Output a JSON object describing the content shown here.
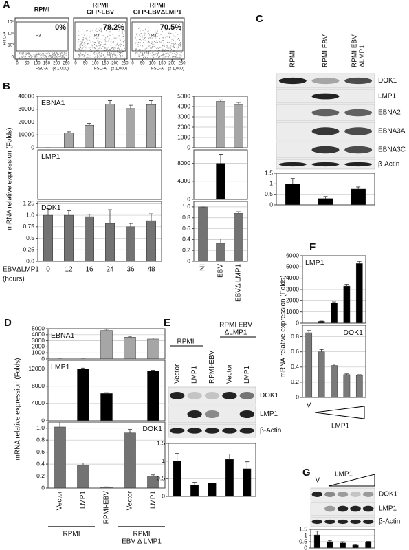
{
  "panel_labels": [
    "A",
    "B",
    "C",
    "D",
    "E",
    "F",
    "G"
  ],
  "flow": {
    "plots": [
      {
        "title": [
          "RPMI"
        ],
        "percent": "0%"
      },
      {
        "title": [
          "RPMI",
          "GFP-EBV"
        ],
        "percent": "78.2%"
      },
      {
        "title": [
          "RPMI",
          "GFP-EBVΔLMP1"
        ],
        "percent": "70.5%"
      }
    ],
    "gate": "P3",
    "x_label": "FSC-A",
    "x_unit": "(x 1,000)",
    "y_label": "FITC-A",
    "xlim": [
      0,
      262
    ],
    "xticks": [
      0,
      50,
      100,
      150,
      200,
      250
    ],
    "yticks": [
      "10⁵",
      "10⁴",
      "10³",
      "0"
    ]
  },
  "blots": {
    "C": {
      "lanes": [
        [
          "RPMI"
        ],
        [
          "RPMI EBV"
        ],
        [
          "RPMI EBV",
          "ΔLMP1"
        ]
      ],
      "rows": [
        "DOK1",
        "LMP1",
        "EBNA2",
        "EBNA3A",
        "EBNA3C",
        "β-Actin"
      ]
    },
    "E": {
      "lanes": [
        [
          "Vector"
        ],
        [
          "LMP1"
        ],
        [
          "RPMI-EBV"
        ],
        [
          "Vector"
        ],
        [
          "LMP1"
        ]
      ],
      "groups": [
        [
          "RPMI"
        ],
        [
          "RPMI EBV",
          "ΔLMP1"
        ]
      ],
      "rows": [
        "DOK1",
        "LMP1",
        "β-Actin"
      ]
    },
    "G": {
      "header": [
        "V",
        "LMP1"
      ],
      "rows": [
        "DOK1",
        "LMP1",
        "β-Actin"
      ]
    }
  },
  "chart_data": [
    {
      "type": "bar",
      "title": "EBNA1",
      "values": [
        100,
        11500,
        17500,
        34000,
        30500,
        33500
      ],
      "errors": [
        0,
        800,
        1500,
        2500,
        2500,
        3000
      ],
      "color": "#a6a6a6",
      "ylim": [
        0,
        40000
      ],
      "yticks": [
        0,
        10000,
        20000,
        30000,
        40000
      ],
      "grid": true
    },
    {
      "type": "bar",
      "title": "LMP1",
      "y_label": "mRNA relative expression (Folds)",
      "values": [
        0,
        0,
        0,
        0,
        0,
        0
      ],
      "color": "#a6a6a6",
      "ylim": [
        0,
        12000
      ],
      "yticks": [],
      "grid": true
    },
    {
      "type": "bar",
      "title": "DOK1",
      "categories": [
        "0",
        "12",
        "16",
        "24",
        "36",
        "48"
      ],
      "x_label": "EBVΔLMP1",
      "x_unit": "(hours)",
      "values": [
        1.0,
        1.0,
        0.97,
        0.82,
        0.75,
        0.88
      ],
      "errors": [
        0.15,
        0.1,
        0.05,
        0.3,
        0.07,
        0.15
      ],
      "color": "#737373",
      "ylim": [
        0,
        1.3
      ],
      "yticks": [
        {
          "value": 0,
          "label": "0.0"
        },
        0.25,
        0.5,
        0.75,
        {
          "value": 1,
          "label": "1.0"
        },
        1.25
      ],
      "grid": true
    },
    {
      "type": "bar",
      "values": [
        0,
        4500,
        4200
      ],
      "errors": [
        0,
        150,
        200
      ],
      "color": "#a6a6a6",
      "ylim": [
        0,
        5000
      ],
      "yticks": [
        0,
        1000,
        2000,
        3000,
        4000,
        5000
      ],
      "grid": true
    },
    {
      "type": "bar",
      "values": [
        0,
        8000,
        0
      ],
      "errors": [
        0,
        2000,
        0
      ],
      "color": "#000000",
      "ylim": [
        0,
        11000
      ],
      "yticks": [
        0,
        4000,
        8000
      ],
      "grid": true
    },
    {
      "type": "bar",
      "categories": [
        "NI",
        "EBV",
        "EBVΔ LMP1"
      ],
      "values": [
        1.0,
        0.33,
        0.88
      ],
      "errors": [
        0,
        0.08,
        0.03
      ],
      "color": "#737373",
      "ylim": [
        0,
        1.1
      ],
      "yticks": [
        0,
        0.2,
        0.4,
        0.6,
        0.8,
        {
          "value": 1,
          "label": "1.0"
        }
      ],
      "grid": true
    },
    {
      "type": "bar",
      "values": [
        1.0,
        0.3,
        0.75
      ],
      "errors": [
        0.25,
        0.1,
        0.1
      ],
      "color": "#000000",
      "ylim": [
        0,
        1.5
      ],
      "yticks": [
        0,
        0.5,
        1,
        1.5
      ],
      "grid": true
    },
    {
      "type": "bar",
      "title": "EBNA1",
      "values": [
        30,
        30,
        4700,
        3600,
        3300
      ],
      "errors": [
        0,
        0,
        200,
        150,
        150
      ],
      "color": "#a6a6a6",
      "ylim": [
        0,
        5000
      ],
      "yticks": [
        0,
        1000,
        2000,
        3000,
        4000,
        5000
      ],
      "grid": true
    },
    {
      "type": "bar",
      "title": "LMP1",
      "y_label": "mRNA relative expression (Folds)",
      "values": [
        0,
        12000,
        6300,
        0,
        11500
      ],
      "errors": [
        0,
        200,
        200,
        0,
        200
      ],
      "color": "#000000",
      "ylim": [
        0,
        14000
      ],
      "yticks": [
        0,
        4000,
        8000,
        12000
      ],
      "grid": true
    },
    {
      "type": "bar",
      "title": "DOK1",
      "categories": [
        "Vector",
        "LMP1",
        "RPMI-EBV",
        "Vector",
        "LMP1"
      ],
      "groups": [
        [
          "RPMI"
        ],
        [
          "RPMI",
          "EBV Δ LMP1"
        ]
      ],
      "values": [
        1.02,
        0.38,
        0.02,
        0.92,
        0.2
      ],
      "errors": [
        0.08,
        0.04,
        0,
        0.06,
        0.02
      ],
      "color": "#737373",
      "ylim": [
        0,
        1.1
      ],
      "yticks": [
        0,
        0.2,
        0.4,
        0.6,
        0.8,
        {
          "value": 1,
          "label": "1.0"
        }
      ],
      "grid": true
    },
    {
      "type": "bar",
      "values": [
        1.0,
        0.32,
        0.38,
        1.05,
        0.78
      ],
      "errors": [
        0.22,
        0.08,
        0.06,
        0.15,
        0.2
      ],
      "color": "#000000",
      "ylim": [
        0,
        1.5
      ],
      "yticks": [
        0,
        0.5,
        1,
        1.5
      ],
      "grid": true
    },
    {
      "type": "bar",
      "title": "LMP1",
      "y_label": "mRNA relative expression (Folds)",
      "values": [
        0,
        150,
        1800,
        3300,
        5300
      ],
      "errors": [
        0,
        30,
        100,
        150,
        200
      ],
      "color": "#000000",
      "ylim": [
        0,
        6000
      ],
      "yticks": [
        0,
        1000,
        2000,
        3000,
        4000,
        5000,
        6000
      ],
      "grid": true
    },
    {
      "type": "bar",
      "title": "DOK1",
      "categories": [
        "V",
        null,
        null,
        null,
        null
      ],
      "x_label": "LMP1",
      "values": [
        0.85,
        0.6,
        0.42,
        0.3,
        0.29
      ],
      "errors": [
        0.03,
        0.03,
        0.02,
        0.01,
        0.01
      ],
      "color": "#7a7a7a",
      "ylim": [
        0,
        0.95
      ],
      "yticks": [
        0,
        0.2,
        0.4,
        0.6,
        0.8
      ],
      "grid": true
    },
    {
      "type": "bar",
      "values": [
        1.05,
        0.5,
        0.4,
        0.22,
        0.48
      ],
      "errors": [
        0.3,
        0.1,
        0.1,
        0.05,
        0.05
      ],
      "color": "#000000",
      "ylim": [
        0,
        1.5
      ],
      "yticks": [
        0,
        0.5,
        1,
        1.5
      ],
      "grid": true
    }
  ]
}
